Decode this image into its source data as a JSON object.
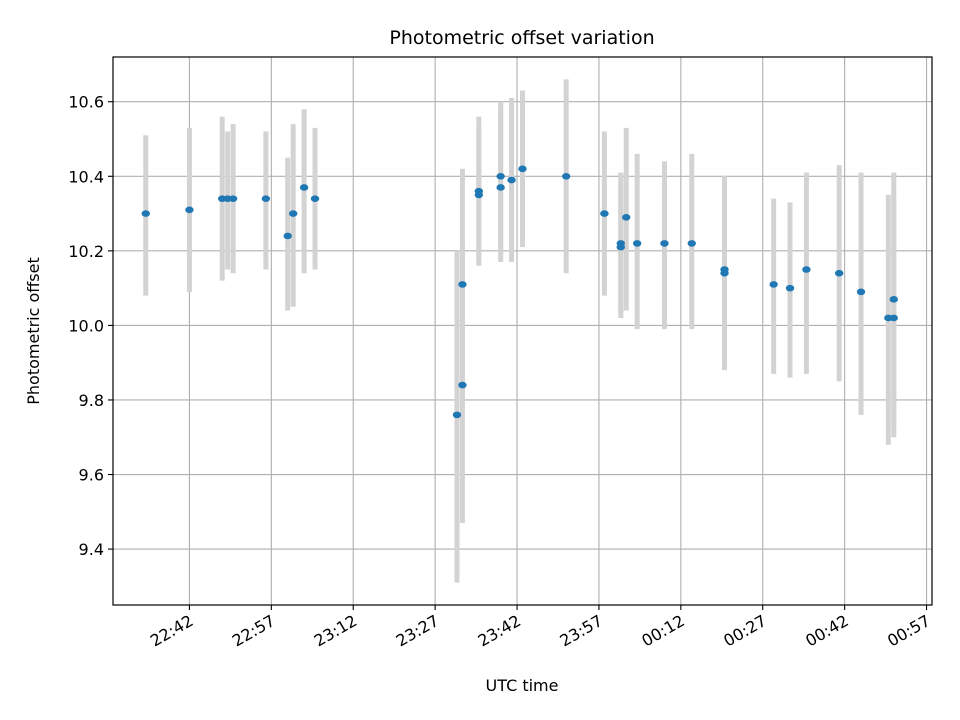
{
  "chart_data": {
    "type": "scatter",
    "title": "Photometric offset variation",
    "xlabel": "UTC time",
    "ylabel": "Photometric offset",
    "grid": true,
    "x_ticks": [
      "22:42",
      "22:57",
      "23:12",
      "23:27",
      "23:42",
      "23:57",
      "00:12",
      "00:27",
      "00:42",
      "00:57"
    ],
    "x_tick_minutes": [
      0,
      15,
      30,
      45,
      60,
      75,
      90,
      105,
      120,
      135
    ],
    "xlim_minutes": [
      -14,
      136
    ],
    "y_ticks": [
      9.4,
      9.6,
      9.8,
      10.0,
      10.2,
      10.4,
      10.6
    ],
    "ylim": [
      9.25,
      10.72
    ],
    "colors": {
      "point": "#1f77b4",
      "errorbar": "#d3d3d3",
      "grid": "#b0b0b0"
    },
    "points": [
      {
        "t": "22:34",
        "y": 10.3,
        "lo": 10.08,
        "hi": 10.51
      },
      {
        "t": "22:42",
        "y": 10.31,
        "lo": 10.09,
        "hi": 10.53
      },
      {
        "t": "22:48",
        "y": 10.34,
        "lo": 10.12,
        "hi": 10.56
      },
      {
        "t": "22:49",
        "y": 10.34,
        "lo": 10.15,
        "hi": 10.52
      },
      {
        "t": "22:50",
        "y": 10.34,
        "lo": 10.14,
        "hi": 10.54
      },
      {
        "t": "22:56",
        "y": 10.34,
        "lo": 10.15,
        "hi": 10.52
      },
      {
        "t": "23:00",
        "y": 10.24,
        "lo": 10.04,
        "hi": 10.45
      },
      {
        "t": "23:01",
        "y": 10.3,
        "lo": 10.05,
        "hi": 10.54
      },
      {
        "t": "23:03",
        "y": 10.37,
        "lo": 10.14,
        "hi": 10.58
      },
      {
        "t": "23:05",
        "y": 10.34,
        "lo": 10.15,
        "hi": 10.53
      },
      {
        "t": "23:31",
        "y": 9.76,
        "lo": 9.31,
        "hi": 10.2
      },
      {
        "t": "23:32",
        "y": 9.84,
        "lo": 9.47,
        "hi": 10.22
      },
      {
        "t": "23:32",
        "y": 10.11,
        "lo": 9.8,
        "hi": 10.42
      },
      {
        "t": "23:35",
        "y": 10.35,
        "lo": 10.16,
        "hi": 10.53
      },
      {
        "t": "23:35",
        "y": 10.36,
        "lo": 10.17,
        "hi": 10.56
      },
      {
        "t": "23:39",
        "y": 10.4,
        "lo": 10.19,
        "hi": 10.6
      },
      {
        "t": "23:39",
        "y": 10.37,
        "lo": 10.17,
        "hi": 10.59
      },
      {
        "t": "23:41",
        "y": 10.39,
        "lo": 10.17,
        "hi": 10.61
      },
      {
        "t": "23:43",
        "y": 10.42,
        "lo": 10.21,
        "hi": 10.63
      },
      {
        "t": "23:51",
        "y": 10.4,
        "lo": 10.14,
        "hi": 10.66
      },
      {
        "t": "23:58",
        "y": 10.3,
        "lo": 10.08,
        "hi": 10.52
      },
      {
        "t": "00:01",
        "y": 10.21,
        "lo": 10.03,
        "hi": 10.39
      },
      {
        "t": "00:01",
        "y": 10.22,
        "lo": 10.02,
        "hi": 10.41
      },
      {
        "t": "00:02",
        "y": 10.29,
        "lo": 10.04,
        "hi": 10.53
      },
      {
        "t": "00:04",
        "y": 10.22,
        "lo": 9.99,
        "hi": 10.46
      },
      {
        "t": "00:09",
        "y": 10.22,
        "lo": 9.99,
        "hi": 10.44
      },
      {
        "t": "00:14",
        "y": 10.22,
        "lo": 9.99,
        "hi": 10.46
      },
      {
        "t": "00:20",
        "y": 10.15,
        "lo": 9.9,
        "hi": 10.4
      },
      {
        "t": "00:20",
        "y": 10.14,
        "lo": 9.88,
        "hi": 10.4
      },
      {
        "t": "00:29",
        "y": 10.11,
        "lo": 9.87,
        "hi": 10.34
      },
      {
        "t": "00:32",
        "y": 10.1,
        "lo": 9.86,
        "hi": 10.33
      },
      {
        "t": "00:35",
        "y": 10.15,
        "lo": 9.87,
        "hi": 10.41
      },
      {
        "t": "00:41",
        "y": 10.14,
        "lo": 9.85,
        "hi": 10.43
      },
      {
        "t": "00:45",
        "y": 10.09,
        "lo": 9.76,
        "hi": 10.41
      },
      {
        "t": "00:50",
        "y": 10.02,
        "lo": 9.68,
        "hi": 10.35
      },
      {
        "t": "00:51",
        "y": 10.02,
        "lo": 9.7,
        "hi": 10.34
      },
      {
        "t": "00:51",
        "y": 10.07,
        "lo": 9.73,
        "hi": 10.41
      }
    ]
  }
}
